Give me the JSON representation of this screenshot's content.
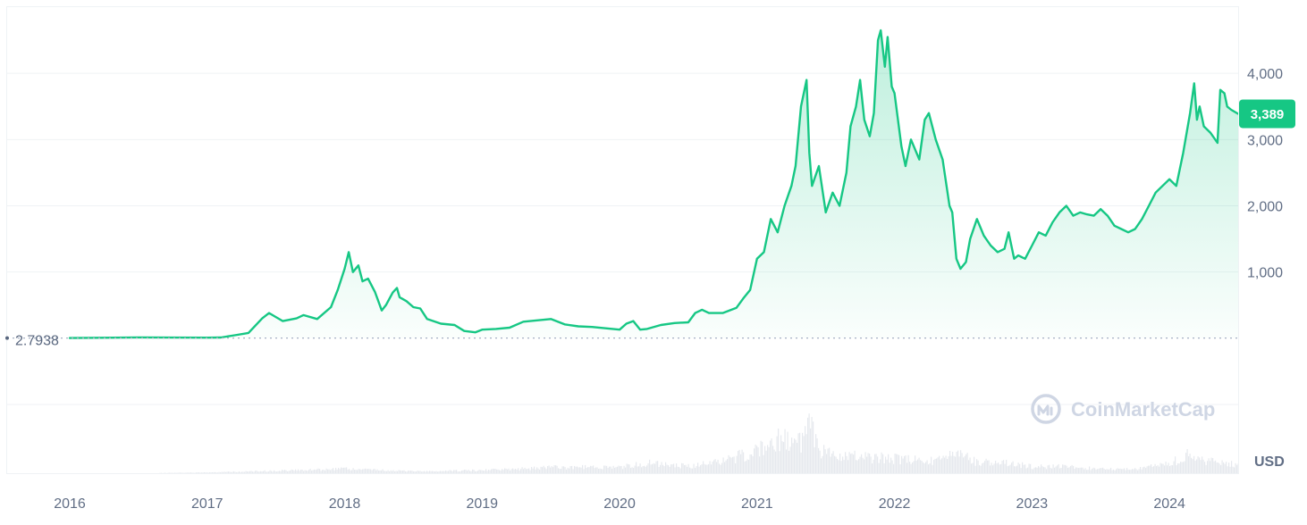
{
  "chart_data": {
    "type": "area",
    "title": "",
    "xlabel": "",
    "ylabel": "",
    "currency_label": "USD",
    "watermark": "CoinMarketCap",
    "start_value_label": "2.7938",
    "current_price_label": "3,389",
    "x_ticks": [
      "2016",
      "2017",
      "2018",
      "2019",
      "2020",
      "2021",
      "2022",
      "2023",
      "2024"
    ],
    "y_ticks": [
      {
        "value": 1000,
        "label": "1,000"
      },
      {
        "value": 2000,
        "label": "2,000"
      },
      {
        "value": 3000,
        "label": "3,000"
      },
      {
        "value": 4000,
        "label": "4,000"
      }
    ],
    "x_range": [
      2016.0,
      2024.5
    ],
    "y_range": [
      -1000,
      5000
    ],
    "grid": true,
    "colors": {
      "line": "#16c784",
      "fill": "#16c784",
      "badge": "#16c784",
      "volume": "#e6e9ee",
      "grid": "#eff2f5",
      "baseline": "#a6b0c3",
      "watermark": "#cfd6e4"
    },
    "series": [
      {
        "points": [
          [
            2016.0,
            2.8
          ],
          [
            2016.5,
            12
          ],
          [
            2017.0,
            8
          ],
          [
            2017.1,
            11
          ],
          [
            2017.2,
            45
          ],
          [
            2017.3,
            80
          ],
          [
            2017.4,
            300
          ],
          [
            2017.45,
            380
          ],
          [
            2017.55,
            260
          ],
          [
            2017.65,
            300
          ],
          [
            2017.7,
            350
          ],
          [
            2017.8,
            290
          ],
          [
            2017.9,
            470
          ],
          [
            2017.95,
            730
          ],
          [
            2018.0,
            1050
          ],
          [
            2018.03,
            1300
          ],
          [
            2018.06,
            1000
          ],
          [
            2018.1,
            1100
          ],
          [
            2018.13,
            860
          ],
          [
            2018.17,
            900
          ],
          [
            2018.22,
            700
          ],
          [
            2018.27,
            420
          ],
          [
            2018.3,
            500
          ],
          [
            2018.35,
            690
          ],
          [
            2018.38,
            760
          ],
          [
            2018.4,
            620
          ],
          [
            2018.45,
            560
          ],
          [
            2018.5,
            470
          ],
          [
            2018.55,
            450
          ],
          [
            2018.6,
            290
          ],
          [
            2018.7,
            220
          ],
          [
            2018.8,
            200
          ],
          [
            2018.87,
            110
          ],
          [
            2018.95,
            90
          ],
          [
            2019.0,
            130
          ],
          [
            2019.1,
            140
          ],
          [
            2019.2,
            160
          ],
          [
            2019.3,
            250
          ],
          [
            2019.4,
            270
          ],
          [
            2019.5,
            290
          ],
          [
            2019.6,
            210
          ],
          [
            2019.7,
            180
          ],
          [
            2019.8,
            170
          ],
          [
            2019.9,
            150
          ],
          [
            2020.0,
            130
          ],
          [
            2020.05,
            220
          ],
          [
            2020.1,
            260
          ],
          [
            2020.15,
            130
          ],
          [
            2020.2,
            140
          ],
          [
            2020.3,
            200
          ],
          [
            2020.4,
            230
          ],
          [
            2020.5,
            240
          ],
          [
            2020.55,
            380
          ],
          [
            2020.6,
            430
          ],
          [
            2020.65,
            380
          ],
          [
            2020.75,
            380
          ],
          [
            2020.85,
            460
          ],
          [
            2020.9,
            600
          ],
          [
            2020.95,
            730
          ],
          [
            2021.0,
            1200
          ],
          [
            2021.05,
            1300
          ],
          [
            2021.1,
            1800
          ],
          [
            2021.15,
            1600
          ],
          [
            2021.2,
            2000
          ],
          [
            2021.25,
            2300
          ],
          [
            2021.28,
            2600
          ],
          [
            2021.32,
            3500
          ],
          [
            2021.36,
            3900
          ],
          [
            2021.38,
            2800
          ],
          [
            2021.4,
            2300
          ],
          [
            2021.45,
            2600
          ],
          [
            2021.5,
            1900
          ],
          [
            2021.55,
            2200
          ],
          [
            2021.6,
            2000
          ],
          [
            2021.65,
            2500
          ],
          [
            2021.68,
            3200
          ],
          [
            2021.72,
            3500
          ],
          [
            2021.75,
            3900
          ],
          [
            2021.78,
            3300
          ],
          [
            2021.82,
            3050
          ],
          [
            2021.85,
            3400
          ],
          [
            2021.88,
            4500
          ],
          [
            2021.9,
            4650
          ],
          [
            2021.93,
            4100
          ],
          [
            2021.95,
            4550
          ],
          [
            2021.98,
            3800
          ],
          [
            2022.0,
            3700
          ],
          [
            2022.05,
            2900
          ],
          [
            2022.08,
            2600
          ],
          [
            2022.12,
            3000
          ],
          [
            2022.18,
            2700
          ],
          [
            2022.22,
            3300
          ],
          [
            2022.25,
            3400
          ],
          [
            2022.3,
            3000
          ],
          [
            2022.35,
            2700
          ],
          [
            2022.4,
            2000
          ],
          [
            2022.42,
            1900
          ],
          [
            2022.45,
            1200
          ],
          [
            2022.48,
            1050
          ],
          [
            2022.52,
            1150
          ],
          [
            2022.55,
            1500
          ],
          [
            2022.6,
            1800
          ],
          [
            2022.65,
            1550
          ],
          [
            2022.7,
            1400
          ],
          [
            2022.75,
            1300
          ],
          [
            2022.8,
            1350
          ],
          [
            2022.83,
            1600
          ],
          [
            2022.87,
            1200
          ],
          [
            2022.9,
            1250
          ],
          [
            2022.95,
            1200
          ],
          [
            2023.0,
            1400
          ],
          [
            2023.05,
            1600
          ],
          [
            2023.1,
            1550
          ],
          [
            2023.15,
            1750
          ],
          [
            2023.2,
            1900
          ],
          [
            2023.25,
            2000
          ],
          [
            2023.3,
            1850
          ],
          [
            2023.35,
            1900
          ],
          [
            2023.4,
            1870
          ],
          [
            2023.45,
            1850
          ],
          [
            2023.5,
            1950
          ],
          [
            2023.55,
            1850
          ],
          [
            2023.6,
            1700
          ],
          [
            2023.65,
            1650
          ],
          [
            2023.7,
            1600
          ],
          [
            2023.75,
            1650
          ],
          [
            2023.8,
            1800
          ],
          [
            2023.85,
            2000
          ],
          [
            2023.9,
            2200
          ],
          [
            2023.95,
            2300
          ],
          [
            2024.0,
            2400
          ],
          [
            2024.05,
            2300
          ],
          [
            2024.1,
            2800
          ],
          [
            2024.15,
            3400
          ],
          [
            2024.18,
            3850
          ],
          [
            2024.2,
            3300
          ],
          [
            2024.22,
            3500
          ],
          [
            2024.25,
            3200
          ],
          [
            2024.3,
            3100
          ],
          [
            2024.35,
            2950
          ],
          [
            2024.37,
            3750
          ],
          [
            2024.4,
            3700
          ],
          [
            2024.42,
            3500
          ],
          [
            2024.45,
            3450
          ],
          [
            2024.5,
            3389
          ]
        ]
      }
    ],
    "volume": [
      [
        2016.0,
        0
      ],
      [
        2016.5,
        0
      ],
      [
        2017.0,
        0.3
      ],
      [
        2017.5,
        1
      ],
      [
        2018.0,
        1.8
      ],
      [
        2018.5,
        0.8
      ],
      [
        2019.0,
        1.2
      ],
      [
        2019.5,
        2.4
      ],
      [
        2020.0,
        2.6
      ],
      [
        2020.2,
        4.2
      ],
      [
        2020.5,
        2.8
      ],
      [
        2020.75,
        4.8
      ],
      [
        2021.0,
        9.5
      ],
      [
        2021.15,
        14
      ],
      [
        2021.3,
        12
      ],
      [
        2021.38,
        20
      ],
      [
        2021.45,
        9
      ],
      [
        2021.6,
        7.5
      ],
      [
        2021.8,
        6.5
      ],
      [
        2022.0,
        6
      ],
      [
        2022.25,
        5
      ],
      [
        2022.45,
        8
      ],
      [
        2022.6,
        4.5
      ],
      [
        2022.85,
        4
      ],
      [
        2023.0,
        2.6
      ],
      [
        2023.2,
        2.8
      ],
      [
        2023.5,
        1.8
      ],
      [
        2023.75,
        1.8
      ],
      [
        2024.0,
        4
      ],
      [
        2024.15,
        8
      ],
      [
        2024.25,
        5
      ],
      [
        2024.4,
        4.5
      ],
      [
        2024.5,
        3
      ]
    ]
  }
}
